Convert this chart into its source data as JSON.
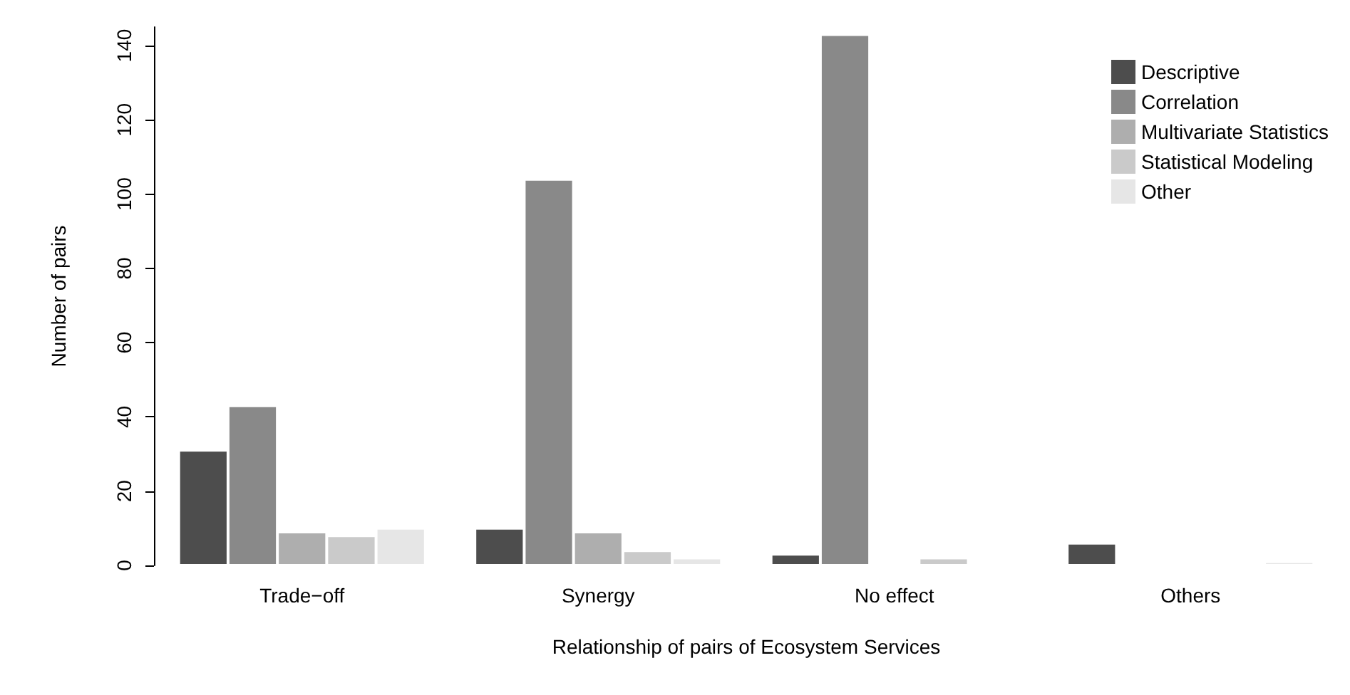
{
  "chart_data": {
    "type": "bar",
    "xlabel": "Relationship of pairs of Ecosystem Services",
    "ylabel": "Number of pairs",
    "categories": [
      "Trade−off",
      "Synergy",
      "No effect",
      "Others"
    ],
    "series": [
      {
        "name": "Descriptive",
        "color": "#4d4d4d",
        "values": [
          31,
          10,
          3,
          6
        ]
      },
      {
        "name": "Correlation",
        "color": "#898989",
        "values": [
          43,
          104,
          143,
          0
        ]
      },
      {
        "name": "Multivariate Statistics",
        "color": "#aeaeae",
        "values": [
          9,
          9,
          0,
          0
        ]
      },
      {
        "name": "Statistical Modeling",
        "color": "#cacaca",
        "values": [
          8,
          4,
          2,
          0
        ]
      },
      {
        "name": "Other",
        "color": "#e6e6e6",
        "values": [
          10,
          2,
          0,
          1
        ]
      }
    ],
    "ylim": [
      0,
      145
    ],
    "yticks": [
      0,
      20,
      40,
      60,
      80,
      100,
      120,
      140
    ],
    "grid": false,
    "legend": "top right"
  }
}
